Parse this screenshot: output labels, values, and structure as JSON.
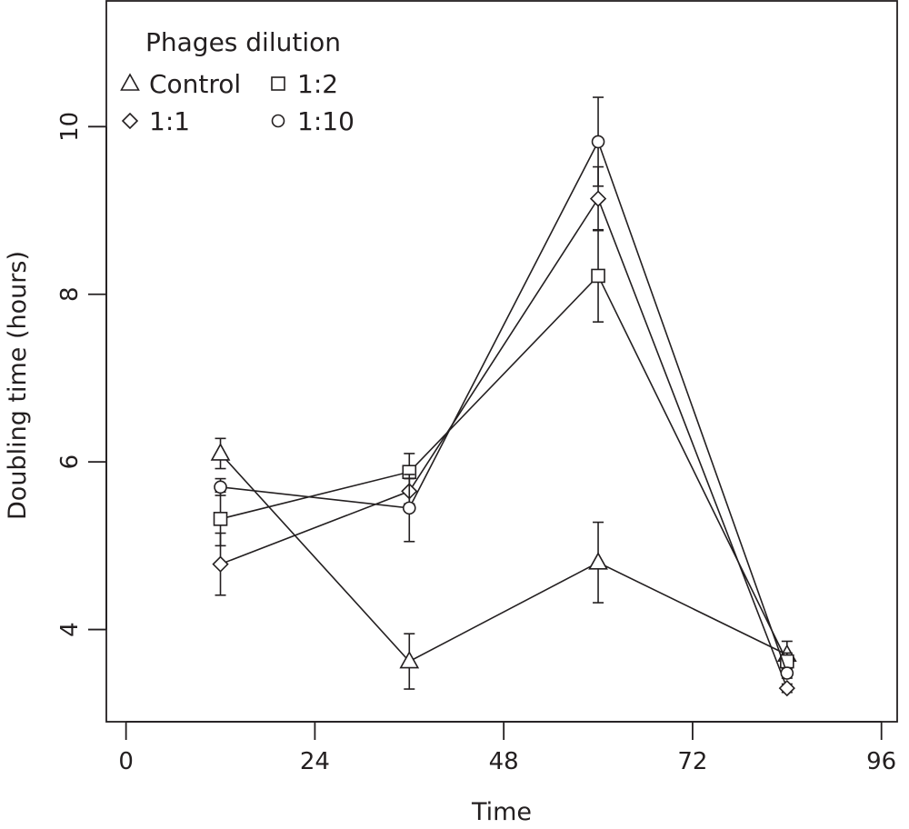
{
  "chart_data": {
    "type": "line",
    "xlabel": "Time",
    "ylabel": "Doubling time (hours)",
    "xlim": [
      -2.5,
      98
    ],
    "ylim": [
      2.9,
      11.5
    ],
    "xticks": [
      "0",
      "24",
      "48",
      "72",
      "96"
    ],
    "xtick_values": [
      0,
      24,
      48,
      72,
      96
    ],
    "yticks": [
      "4",
      "6",
      "8",
      "10"
    ],
    "ytick_values": [
      4,
      6,
      8,
      10
    ],
    "grid": false,
    "legend": {
      "title": "Phages dilution",
      "placement": "top-left"
    },
    "x": [
      12,
      36,
      60,
      84
    ],
    "series": [
      {
        "name": "Control",
        "marker": "triangle",
        "values": [
          6.1,
          3.62,
          4.8,
          3.7
        ],
        "errors": [
          0.18,
          0.33,
          0.48,
          0.16
        ]
      },
      {
        "name": "1:2",
        "marker": "square",
        "values": [
          5.32,
          5.88,
          8.22,
          3.62
        ],
        "errors": [
          0.32,
          0.22,
          0.55,
          0.1
        ]
      },
      {
        "name": "1:1",
        "marker": "diamond",
        "values": [
          4.78,
          5.65,
          9.14,
          3.3
        ],
        "errors": [
          0.37,
          0.15,
          0.38,
          0.05
        ]
      },
      {
        "name": "1:10",
        "marker": "circle",
        "values": [
          5.7,
          5.45,
          9.82,
          3.48
        ],
        "errors": [
          0.1,
          0.4,
          0.53,
          0.06
        ]
      }
    ]
  }
}
